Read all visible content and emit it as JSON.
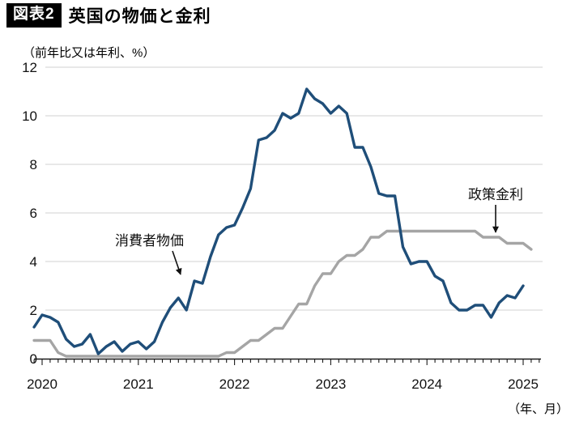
{
  "header": {
    "badge": "図表2",
    "title": "英国の物価と金利"
  },
  "y_axis_unit_label": "（前年比又は年利、%）",
  "x_axis_unit_label": "（年、月）",
  "annotations": [
    {
      "id": "cpi",
      "text": "消費者物価"
    },
    {
      "id": "policy",
      "text": "政策金利"
    }
  ],
  "colors": {
    "cpi_line": "#1F4E79",
    "policy_line": "#A5A5A5",
    "gridline": "#D9D9D9",
    "axis": "#1a1a1a",
    "badge_bg": "#000000",
    "badge_text": "#ffffff"
  },
  "chart_data": {
    "type": "line",
    "title": "英国の物価と金利",
    "ylabel": "（前年比又は年利、%）",
    "xlabel": "（年、月）",
    "ylim": [
      0,
      12
    ],
    "y_ticks": [
      0,
      2,
      4,
      6,
      8,
      10,
      12
    ],
    "grid": "horizontal",
    "x_tick_year_labels": [
      "2020",
      "2021",
      "2022",
      "2023",
      "2024",
      "2025"
    ],
    "x_interval": "month",
    "x_monthly_from": "2019-12",
    "series": [
      {
        "id": "cpi",
        "name": "消費者物価",
        "color": "#1F4E79",
        "values": [
          1.3,
          1.8,
          1.7,
          1.5,
          0.8,
          0.5,
          0.6,
          1.0,
          0.2,
          0.5,
          0.7,
          0.3,
          0.6,
          0.7,
          0.4,
          0.7,
          1.5,
          2.1,
          2.5,
          2.0,
          3.2,
          3.1,
          4.2,
          5.1,
          5.4,
          5.5,
          6.2,
          7.0,
          9.0,
          9.1,
          9.4,
          10.1,
          9.9,
          10.1,
          11.1,
          10.7,
          10.5,
          10.1,
          10.4,
          10.1,
          8.7,
          8.7,
          7.9,
          6.8,
          6.7,
          6.7,
          4.6,
          3.9,
          4.0,
          4.0,
          3.4,
          3.2,
          2.3,
          2.0,
          2.0,
          2.2,
          2.2,
          1.7,
          2.3,
          2.6,
          2.5,
          3.0
        ]
      },
      {
        "id": "policy",
        "name": "政策金利",
        "color": "#A5A5A5",
        "values": [
          0.75,
          0.75,
          0.75,
          0.25,
          0.1,
          0.1,
          0.1,
          0.1,
          0.1,
          0.1,
          0.1,
          0.1,
          0.1,
          0.1,
          0.1,
          0.1,
          0.1,
          0.1,
          0.1,
          0.1,
          0.1,
          0.1,
          0.1,
          0.1,
          0.25,
          0.25,
          0.5,
          0.75,
          0.75,
          1.0,
          1.25,
          1.25,
          1.75,
          2.25,
          2.25,
          3.0,
          3.5,
          3.5,
          4.0,
          4.25,
          4.25,
          4.5,
          5.0,
          5.0,
          5.25,
          5.25,
          5.25,
          5.25,
          5.25,
          5.25,
          5.25,
          5.25,
          5.25,
          5.25,
          5.25,
          5.25,
          5.0,
          5.0,
          5.0,
          4.75,
          4.75,
          4.75,
          4.5
        ]
      }
    ]
  }
}
